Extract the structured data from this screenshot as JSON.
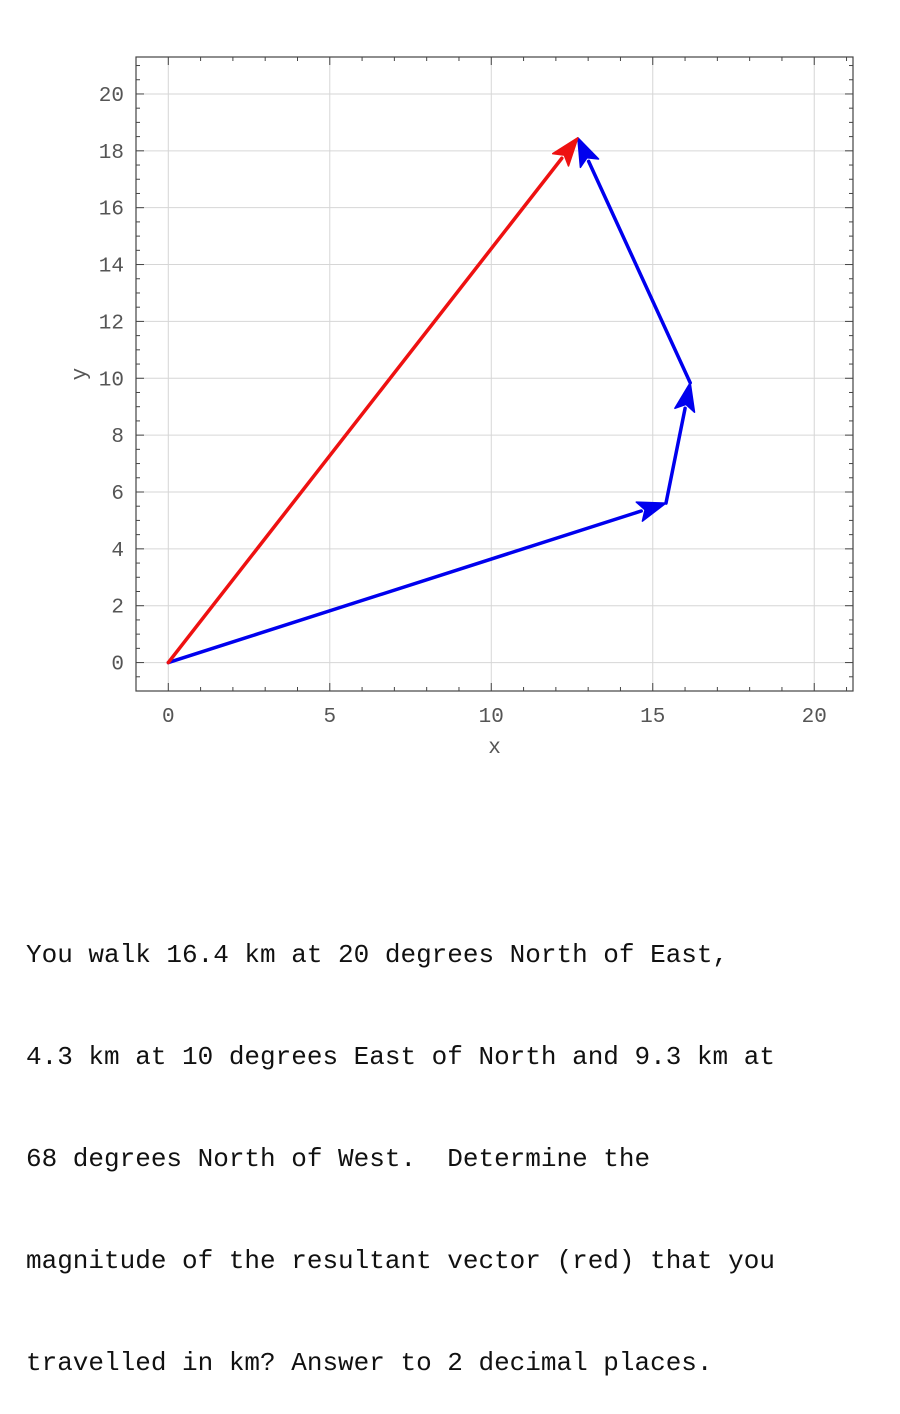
{
  "chart_data": {
    "type": "vector-diagram",
    "xlabel": "x",
    "ylabel": "y",
    "xlim": [
      -1,
      21.2
    ],
    "ylim": [
      -1,
      21.3
    ],
    "xticks": [
      0,
      5,
      10,
      15,
      20
    ],
    "yticks": [
      0,
      2,
      4,
      6,
      8,
      10,
      12,
      14,
      16,
      18,
      20
    ],
    "grid": true,
    "vectors": [
      {
        "id": "v1",
        "color": "#0000ee",
        "from": [
          0,
          0
        ],
        "to": [
          15.41,
          5.61
        ]
      },
      {
        "id": "v2",
        "color": "#0000ee",
        "from": [
          15.41,
          5.61
        ],
        "to": [
          16.16,
          9.84
        ]
      },
      {
        "id": "v3",
        "color": "#0000ee",
        "from": [
          16.16,
          9.84
        ],
        "to": [
          12.68,
          18.46
        ]
      },
      {
        "id": "resultant",
        "color": "#ee1111",
        "from": [
          0,
          0
        ],
        "to": [
          12.68,
          18.46
        ]
      }
    ]
  },
  "question": {
    "lines": [
      "You walk 16.4 km at 20 degrees North of East,",
      "4.3 km at 10 degrees East of North and 9.3 km at",
      "68 degrees North of West.  Determine the",
      "magnitude of the resultant vector (red) that you",
      "travelled in km? Answer to 2 decimal places."
    ]
  }
}
